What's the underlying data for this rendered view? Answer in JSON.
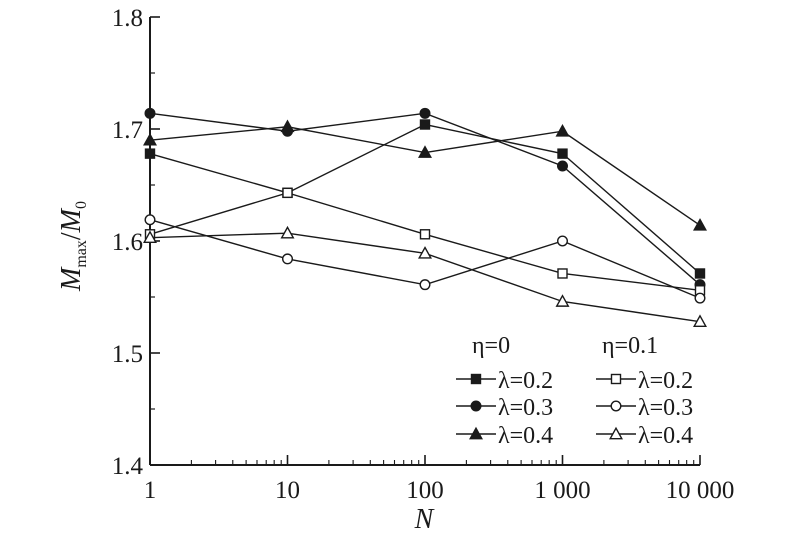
{
  "chart_data": {
    "type": "line",
    "xscale": "log",
    "x": [
      1,
      10,
      100,
      1000,
      10000
    ],
    "x_tick_labels": [
      "1",
      "10",
      "100",
      "1 000",
      "10 000"
    ],
    "ylim": [
      1.4,
      1.8
    ],
    "y_ticks": [
      1.4,
      1.5,
      1.6,
      1.7,
      1.8
    ],
    "y_tick_labels": [
      "1.4",
      "1.5",
      "1.6",
      "1.7",
      "1.8"
    ],
    "xlabel": "N",
    "ylabel": {
      "main": "M",
      "sub1": "max",
      "sep": "/",
      "main2": "M",
      "sub2": "0"
    },
    "grid": false,
    "legend_position": "bottom-right",
    "legend_groups": [
      "η=0",
      "η=0.1"
    ],
    "series": [
      {
        "name": "λ=0.2",
        "group": 0,
        "marker": "square",
        "filled": true,
        "values": [
          1.678,
          1.643,
          1.704,
          1.678,
          1.571
        ]
      },
      {
        "name": "λ=0.3",
        "group": 0,
        "marker": "circle",
        "filled": true,
        "values": [
          1.714,
          1.698,
          1.714,
          1.667,
          1.561
        ]
      },
      {
        "name": "λ=0.4",
        "group": 0,
        "marker": "triangle",
        "filled": true,
        "values": [
          1.69,
          1.702,
          1.679,
          1.698,
          1.614
        ]
      },
      {
        "name": "λ=0.2",
        "group": 1,
        "marker": "square",
        "filled": false,
        "values": [
          1.606,
          1.643,
          1.606,
          1.571,
          1.556
        ]
      },
      {
        "name": "λ=0.3",
        "group": 1,
        "marker": "circle",
        "filled": false,
        "values": [
          1.619,
          1.584,
          1.561,
          1.6,
          1.549
        ]
      },
      {
        "name": "λ=0.4",
        "group": 1,
        "marker": "triangle",
        "filled": false,
        "values": [
          1.603,
          1.607,
          1.589,
          1.546,
          1.528
        ]
      }
    ]
  }
}
